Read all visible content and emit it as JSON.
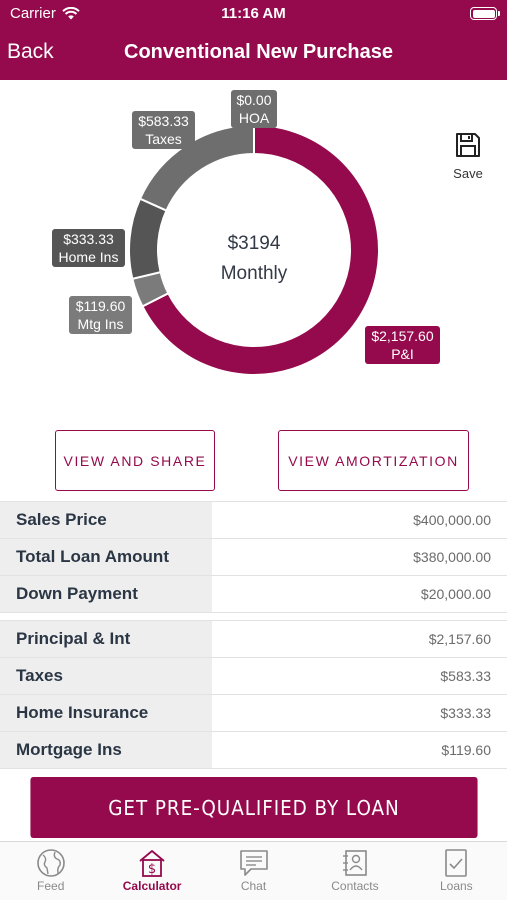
{
  "status": {
    "carrier": "Carrier",
    "time": "11:16 AM"
  },
  "nav": {
    "back_label": "Back",
    "title": "Conventional New Purchase"
  },
  "colors": {
    "brand": "#950a4c",
    "gray_dark": "#555555",
    "gray_mid": "#6e6e6e",
    "gray_light": "#7f7f7f"
  },
  "chart_data": {
    "type": "pie",
    "style": "donut",
    "center": {
      "amount": "$3194",
      "label": "Monthly"
    },
    "slices": [
      {
        "name": "P&I",
        "value": 2157.6,
        "display": "$2,157.60",
        "color": "#950a4c"
      },
      {
        "name": "Mtg Ins",
        "value": 119.6,
        "display": "$119.60",
        "color": "#7b7b7b"
      },
      {
        "name": "Home Ins",
        "value": 333.33,
        "display": "$333.33",
        "color": "#555555"
      },
      {
        "name": "Taxes",
        "value": 583.33,
        "display": "$583.33",
        "color": "#6e6e6e"
      },
      {
        "name": "HOA",
        "value": 0.0,
        "display": "$0.00",
        "color": "#6e6e6e"
      }
    ]
  },
  "save": {
    "label": "Save",
    "icon": "floppy-disk-icon"
  },
  "actions": {
    "view_share": "VIEW AND SHARE",
    "view_amortization": "VIEW AMORTIZATION"
  },
  "loan_table": [
    {
      "label": "Sales Price",
      "value": "$400,000.00"
    },
    {
      "label": "Total Loan Amount",
      "value": "$380,000.00"
    },
    {
      "label": "Down Payment",
      "value": "$20,000.00"
    }
  ],
  "payment_table": [
    {
      "label": "Principal & Int",
      "value": "$2,157.60"
    },
    {
      "label": "Taxes",
      "value": "$583.33"
    },
    {
      "label": "Home Insurance",
      "value": "$333.33"
    },
    {
      "label": "Mortgage Ins",
      "value": "$119.60"
    }
  ],
  "cta": {
    "label": "GET PRE-QUALIFIED BY LOAN"
  },
  "tabs": [
    {
      "label": "Feed",
      "icon": "globe-icon"
    },
    {
      "label": "Calculator",
      "icon": "calculator-dollar-icon",
      "active": true
    },
    {
      "label": "Chat",
      "icon": "chat-icon"
    },
    {
      "label": "Contacts",
      "icon": "contacts-icon"
    },
    {
      "label": "Loans",
      "icon": "loan-document-icon"
    }
  ]
}
